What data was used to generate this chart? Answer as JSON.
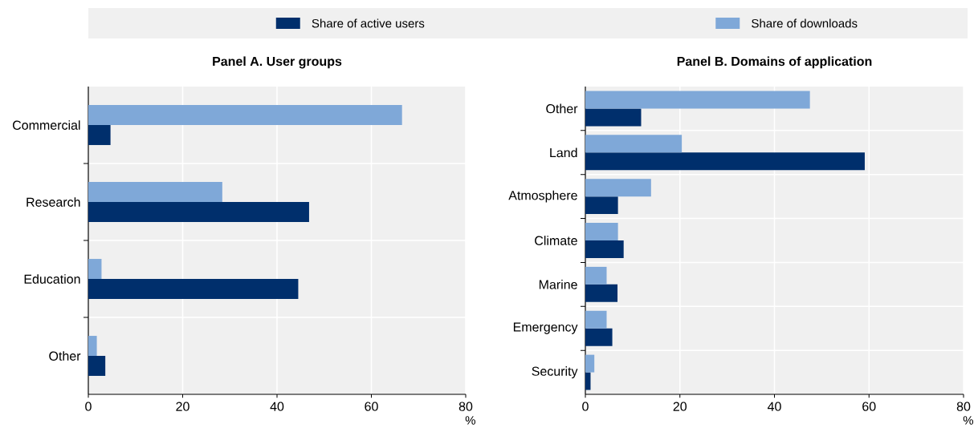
{
  "chart_data": [
    {
      "type": "bar",
      "orientation": "horizontal",
      "title": "Panel A. User groups",
      "xlabel": "%",
      "categories": [
        "Commercial",
        "Research",
        "Education",
        "Other"
      ],
      "series": [
        {
          "name": "Share of active users",
          "color": "#002f6c",
          "values": [
            4.7,
            46.8,
            44.5,
            3.6
          ]
        },
        {
          "name": "Share of downloads",
          "color": "#7fa8d8",
          "values": [
            66.5,
            28.4,
            2.8,
            1.8
          ]
        }
      ],
      "xlim": [
        0,
        80
      ],
      "xticks": [
        0,
        20,
        40,
        60,
        80
      ],
      "grid": true,
      "legend": "top"
    },
    {
      "type": "bar",
      "orientation": "horizontal",
      "title": "Panel B. Domains of application",
      "xlabel": "%",
      "categories": [
        "Other",
        "Land",
        "Atmosphere",
        "Climate",
        "Marine",
        "Emergency",
        "Security"
      ],
      "series": [
        {
          "color": "#002f6c",
          "values": [
            11.8,
            59.1,
            6.9,
            8.1,
            6.8,
            5.7,
            1.1
          ]
        },
        {
          "color": "#7fa8d8",
          "values": [
            47.5,
            20.4,
            13.9,
            6.9,
            4.5,
            4.5,
            1.9
          ]
        }
      ],
      "xlim": [
        0,
        80
      ],
      "xticks": [
        0,
        20,
        40,
        60,
        80
      ],
      "grid": true
    }
  ]
}
